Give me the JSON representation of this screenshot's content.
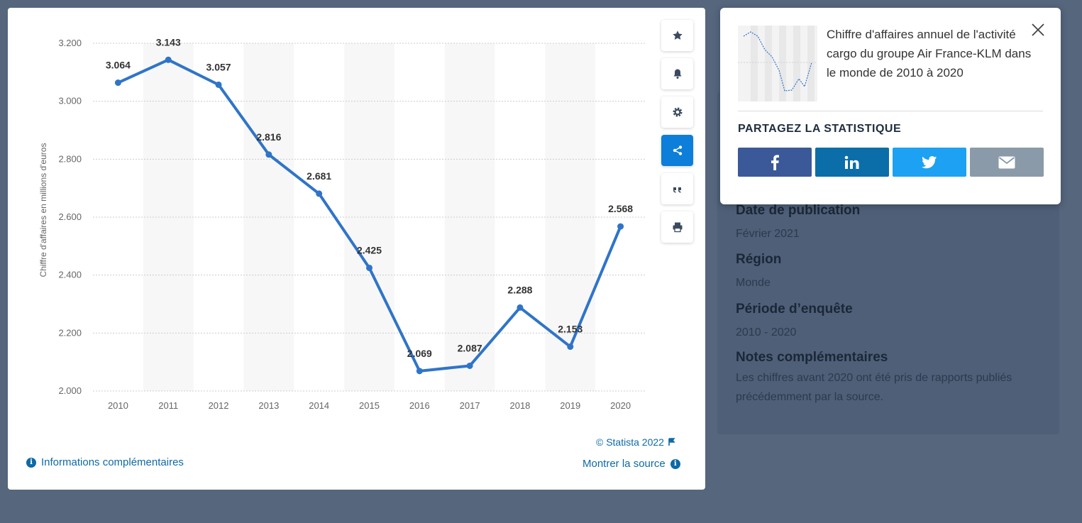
{
  "chart_data": {
    "type": "line",
    "categories": [
      "2010",
      "2011",
      "2012",
      "2013",
      "2014",
      "2015",
      "2016",
      "2017",
      "2018",
      "2019",
      "2020"
    ],
    "values": [
      3064,
      3143,
      3057,
      2816,
      2681,
      2425,
      2069,
      2087,
      2288,
      2153,
      2568
    ],
    "value_labels": [
      "3.064",
      "3.143",
      "3.057",
      "2.816",
      "2.681",
      "2.425",
      "2.069",
      "2.087",
      "2.288",
      "2.153",
      "2.568"
    ],
    "ylabel": "Chiffre d'affaires en millions d'euros",
    "ylim": [
      2000,
      3200
    ],
    "yticks": [
      2000,
      2200,
      2400,
      2600,
      2800,
      3000,
      3200
    ],
    "ytick_labels": [
      "2.000",
      "2.200",
      "2.400",
      "2.600",
      "2.800",
      "3.000",
      "3.200"
    ],
    "grid": true,
    "series_color": "#2f74c9"
  },
  "toolbar": {
    "icons": [
      "star-icon",
      "bell-icon",
      "gear-icon",
      "share-icon",
      "quote-icon",
      "print-icon"
    ],
    "active": "share-icon",
    "active_color": "#0d7ed9"
  },
  "footer": {
    "copyright": "© Statista 2022",
    "more_info": "Informations complémentaires",
    "show_source": "Montrer la source"
  },
  "popup": {
    "title": "Chiffre d'affaires annuel de l'activité cargo du groupe Air France-KLM dans le monde de 2010 à 2020",
    "share_heading": "PARTAGEZ LA STATISTIQUE",
    "buttons": [
      {
        "name": "facebook",
        "icon": "facebook-icon",
        "color": "#3b5998"
      },
      {
        "name": "linkedin",
        "icon": "linkedin-icon",
        "color": "#0b6ea8"
      },
      {
        "name": "twitter",
        "icon": "twitter-icon",
        "color": "#1da1f2"
      },
      {
        "name": "email",
        "icon": "email-icon",
        "color": "#8a9aa8"
      }
    ]
  },
  "details": {
    "publication_label": "Date de publication",
    "publication_value": "Février 2021",
    "region_label": "Région",
    "region_value": "Monde",
    "period_label": "Période d’enquête",
    "period_value": "2010 - 2020",
    "notes_label": "Notes complémentaires",
    "notes_value": "Les chiffres avant 2020 ont été pris de rapports publiés précédemment par la source."
  }
}
